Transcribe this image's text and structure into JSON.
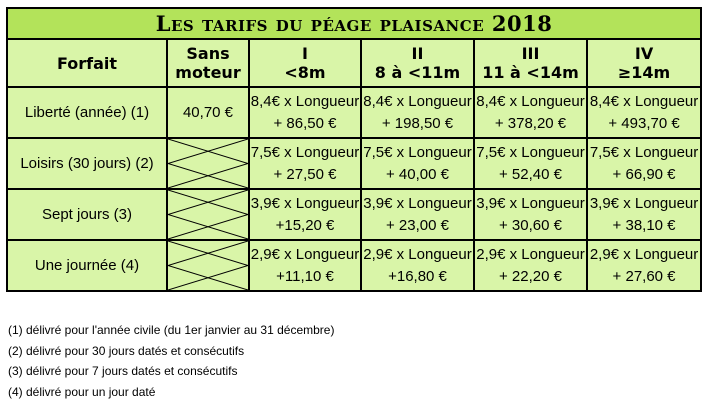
{
  "title": "Les tarifs du péage plaisance 2018",
  "headers": {
    "forfait": "Forfait",
    "sans_moteur": [
      "Sans",
      "moteur"
    ],
    "cat1": [
      "I",
      "<8m"
    ],
    "cat2": [
      "II",
      "8 à <11m"
    ],
    "cat3": [
      "III",
      "11 à <14m"
    ],
    "cat4": [
      "IV",
      "≥14m"
    ]
  },
  "rows": [
    {
      "label": "Liberté (année) (1)",
      "sans_moteur": "40,70 €",
      "cells": [
        [
          "8,4€ x Longueur",
          "+ 86,50 €"
        ],
        [
          "8,4€ x Longueur",
          "+ 198,50 €"
        ],
        [
          "8,4€ x Longueur",
          "+ 378,20 €"
        ],
        [
          "8,4€ x Longueur",
          "+ 493,70 €"
        ]
      ]
    },
    {
      "label": "Loisirs (30 jours) (2)",
      "sans_moteur": "",
      "cells": [
        [
          "7,5€ x Longueur",
          "+ 27,50 €"
        ],
        [
          "7,5€ x Longueur",
          "+ 40,00 €"
        ],
        [
          "7,5€ x Longueur",
          "+ 52,40 €"
        ],
        [
          "7,5€ x Longueur",
          "+ 66,90 €"
        ]
      ]
    },
    {
      "label": "Sept jours (3)",
      "sans_moteur": "",
      "cells": [
        [
          "3,9€ x Longueur",
          "+15,20 €"
        ],
        [
          "3,9€ x Longueur",
          "+ 23,00 €"
        ],
        [
          "3,9€ x Longueur",
          "+ 30,60 €"
        ],
        [
          "3,9€ x Longueur",
          "+ 38,10 €"
        ]
      ]
    },
    {
      "label": "Une journée (4)",
      "sans_moteur": "",
      "cells": [
        [
          "2,9€ x Longueur",
          "+11,10 €"
        ],
        [
          "2,9€ x Longueur",
          "+16,80 €"
        ],
        [
          "2,9€ x Longueur",
          "+ 22,20 €"
        ],
        [
          "2,9€ x Longueur",
          "+ 27,60 €"
        ]
      ]
    }
  ],
  "notes": [
    "(1) délivré pour l'année civile (du 1er janvier au 31 décembre)",
    "(2) délivré pour 30 jours datés et consécutifs",
    "(3) délivré pour 7 jours datés et consécutifs",
    "(4) délivré pour un jour daté"
  ],
  "colors": {
    "title_bg": "#b3e35a",
    "table_bg": "#d9f5a8",
    "border": "#000000"
  }
}
